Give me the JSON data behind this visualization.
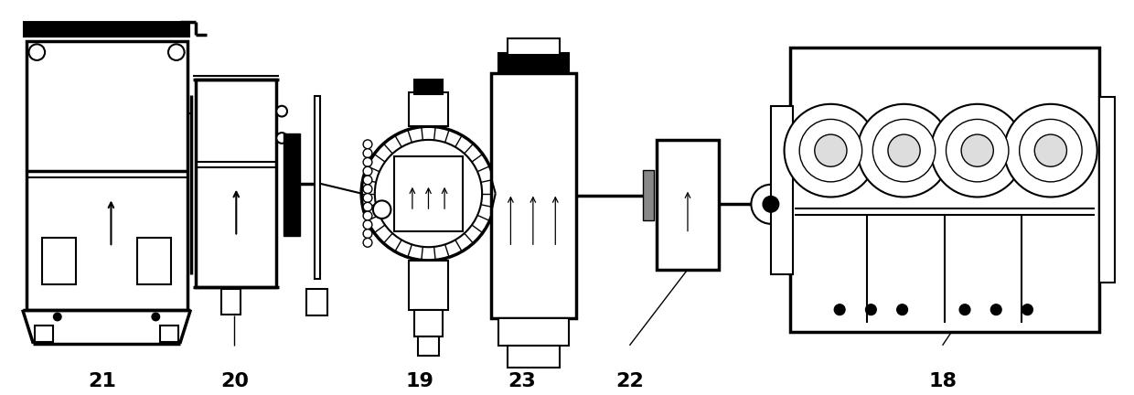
{
  "background_color": "#ffffff",
  "line_color": "#000000",
  "labels": [
    "21",
    "20",
    "19",
    "23",
    "22",
    "18"
  ],
  "label_fontsize": 16,
  "label_fontweight": "bold",
  "figsize": [
    12.4,
    4.32
  ],
  "dpi": 100
}
